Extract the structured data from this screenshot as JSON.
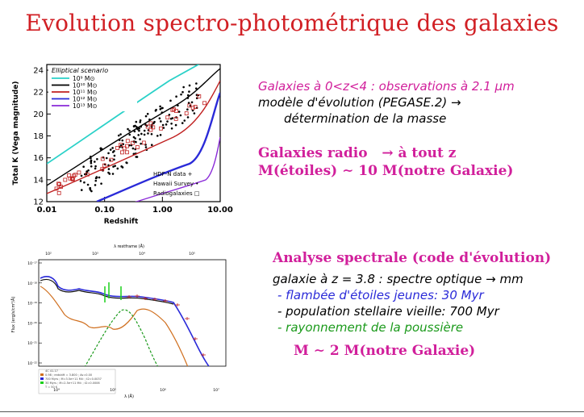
{
  "slide": {
    "title": "Evolution spectro-photométrique des galaxies",
    "title_color": "#d11f24",
    "magenta": "#d11f9b"
  },
  "figure1": {
    "legend_title": "Elliptical scenario",
    "legend_items": [
      {
        "label": "10⁹ M⊙",
        "color": "#2ad1c8"
      },
      {
        "label": "10¹⁰ M⊙",
        "color": "#000000"
      },
      {
        "label": "10¹¹ M⊙",
        "color": "#c02020"
      },
      {
        "label": "10¹² M⊙",
        "color": "#2a2ad8"
      },
      {
        "label": "10¹³ M⊙",
        "color": "#8a2ad8"
      }
    ],
    "symbol_legend": [
      "HDF-N data +",
      "Hawaii Survey •",
      "Radiogalaxies □"
    ],
    "ylabel": "Total K (Vega magnitude)",
    "xlabel": "Redshift",
    "yticks": [
      "24",
      "22",
      "20",
      "18",
      "16",
      "14",
      "12"
    ],
    "xticks": [
      "0.01",
      "0.10",
      "1.00",
      "10.00"
    ]
  },
  "figure2": {
    "top_axis_label": "λ restframe (Å)",
    "top_ticks": [
      "10²",
      "10³",
      "10⁴",
      "10⁵"
    ],
    "bottom_axis_label": "λ (Å)",
    "bottom_ticks": [
      "10⁴",
      "10⁵",
      "10⁶",
      "10⁷"
    ],
    "ylabel": "Flux (erg/s/cm²/Å)",
    "yticks": [
      "10⁻¹⁷",
      "10⁻¹⁸",
      "10⁻¹⁹",
      "10⁻²⁰",
      "10⁻²¹",
      "10⁻²²"
    ],
    "info_lines": [
      "4C 41.17",
      "0.98 ; redshift = 3.800 ; Av=0.00",
      "700 Myrs ; M=3.5e+11 M⊙ ; t2=0.0037",
      "30 Myrs ; M=2.5e+11 M⊙ ; t2=0.0006",
      "T = 50 K"
    ]
  },
  "right_text": {
    "p1_line1": "Galaxies à 0<z<4 : observations à 2.1 μm",
    "p1_line2": "modèle d'évolution (PEGASE.2) →",
    "p1_line3": "détermination de la masse",
    "p2_line1": "Galaxies radio   → à tout z",
    "p2_line2": "M(étoiles) ∼ 10 M(notre Galaxie)",
    "p3_heading": "Analyse spectrale (code d'évolution)",
    "p3_line1": "galaxie à z = 3.8 : spectre optique → mm",
    "p3_bullet1": "- flambée d'étoiles jeunes: 30 Myr",
    "p3_bullet2": "- population stellaire vieille: 700 Myr",
    "p3_bullet3": "- rayonnement de la poussière",
    "p3_result": "M ∼ 2 M(notre Galaxie)"
  }
}
